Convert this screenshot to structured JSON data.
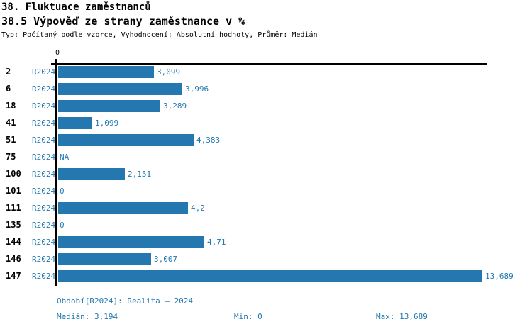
{
  "title": "38. Fluktuace zaměstnanců",
  "subtitle": "38.5 Výpověď ze strany zaměstnance v %",
  "meta_line": "Typ: Počítaný podle vzorce, Vyhodnocení: Absolutní hodnoty, Průměr: Medián",
  "colors": {
    "bar": "#2478af",
    "blue_text": "#2478af",
    "axis": "#000000"
  },
  "chart_data": {
    "type": "bar",
    "orientation": "horizontal",
    "title": "38.5 Výpověď ze strany zaměstnance v %",
    "series_label": "R2024",
    "categories": [
      "2",
      "6",
      "18",
      "41",
      "51",
      "75",
      "100",
      "101",
      "111",
      "135",
      "144",
      "146",
      "147"
    ],
    "values": [
      3.099,
      3.996,
      3.289,
      1.099,
      4.383,
      null,
      2.151,
      0,
      4.2,
      0,
      4.71,
      3.007,
      13.689
    ],
    "value_labels": [
      "3,099",
      "3,996",
      "3,289",
      "1,099",
      "4,383",
      "NA",
      "2,151",
      "0",
      "4,2",
      "0",
      "4,71",
      "3,007",
      "13,689"
    ],
    "xlim": [
      0,
      13.689
    ],
    "x_axis_tick_label": "0",
    "median_value": 3.194,
    "grid": false,
    "legend_position": "none"
  },
  "footer": {
    "period": "Období[R2024]: Realita – 2024",
    "median": "Medián: 3,194",
    "min": "Min: 0",
    "max": "Max: 13,689"
  }
}
